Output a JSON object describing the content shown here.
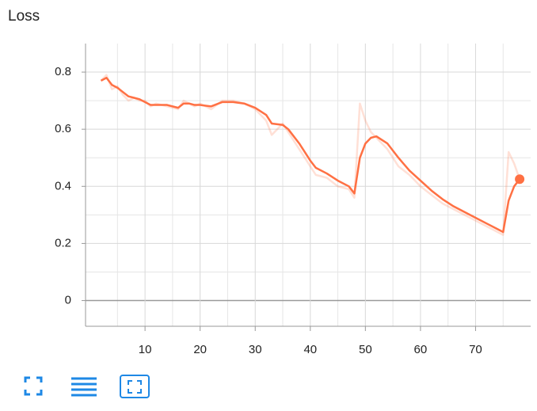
{
  "chart_data": {
    "type": "line",
    "title": "Loss",
    "x": [
      2,
      3,
      4,
      5,
      6,
      7,
      8,
      9,
      10,
      11,
      12,
      14,
      16,
      17,
      18,
      19,
      20,
      22,
      24,
      26,
      28,
      30,
      32,
      33,
      35,
      36,
      38,
      40,
      41,
      43,
      45,
      47,
      48,
      49,
      50,
      51,
      52,
      54,
      56,
      58,
      60,
      62,
      64,
      66,
      68,
      70,
      72,
      74,
      75,
      76,
      77,
      78
    ],
    "series": [
      {
        "color": "#ff7043",
        "opacity": 0.22,
        "values": [
          0.77,
          0.79,
          0.74,
          0.75,
          0.72,
          0.7,
          0.71,
          0.7,
          0.7,
          0.68,
          0.69,
          0.68,
          0.67,
          0.7,
          0.69,
          0.68,
          0.69,
          0.67,
          0.7,
          0.7,
          0.69,
          0.67,
          0.63,
          0.58,
          0.62,
          0.59,
          0.53,
          0.47,
          0.44,
          0.43,
          0.4,
          0.39,
          0.36,
          0.69,
          0.63,
          0.59,
          0.57,
          0.53,
          0.47,
          0.44,
          0.4,
          0.37,
          0.34,
          0.32,
          0.3,
          0.28,
          0.26,
          0.24,
          0.23,
          0.52,
          0.48,
          0.425
        ]
      },
      {
        "color": "#ff7043",
        "opacity": 1,
        "end_marker": true,
        "values": [
          0.77,
          0.78,
          0.755,
          0.745,
          0.73,
          0.715,
          0.71,
          0.705,
          0.695,
          0.685,
          0.685,
          0.685,
          0.675,
          0.69,
          0.69,
          0.685,
          0.685,
          0.68,
          0.695,
          0.695,
          0.69,
          0.675,
          0.65,
          0.62,
          0.615,
          0.6,
          0.55,
          0.49,
          0.465,
          0.445,
          0.42,
          0.4,
          0.375,
          0.5,
          0.55,
          0.57,
          0.575,
          0.55,
          0.5,
          0.455,
          0.42,
          0.385,
          0.355,
          0.33,
          0.31,
          0.29,
          0.27,
          0.25,
          0.24,
          0.35,
          0.4,
          0.425
        ]
      }
    ],
    "xlim": [
      -0.8,
      80
    ],
    "ylim": [
      -0.09,
      0.9
    ],
    "xticks": [
      10,
      20,
      30,
      40,
      50,
      60,
      70
    ],
    "yticks": [
      0,
      0.2,
      0.4,
      0.6,
      0.8
    ],
    "xminor": [
      5,
      15,
      25,
      35,
      45,
      55,
      65,
      75
    ],
    "yminor": [
      0.1,
      0.3,
      0.5,
      0.7
    ],
    "grid": true
  }
}
